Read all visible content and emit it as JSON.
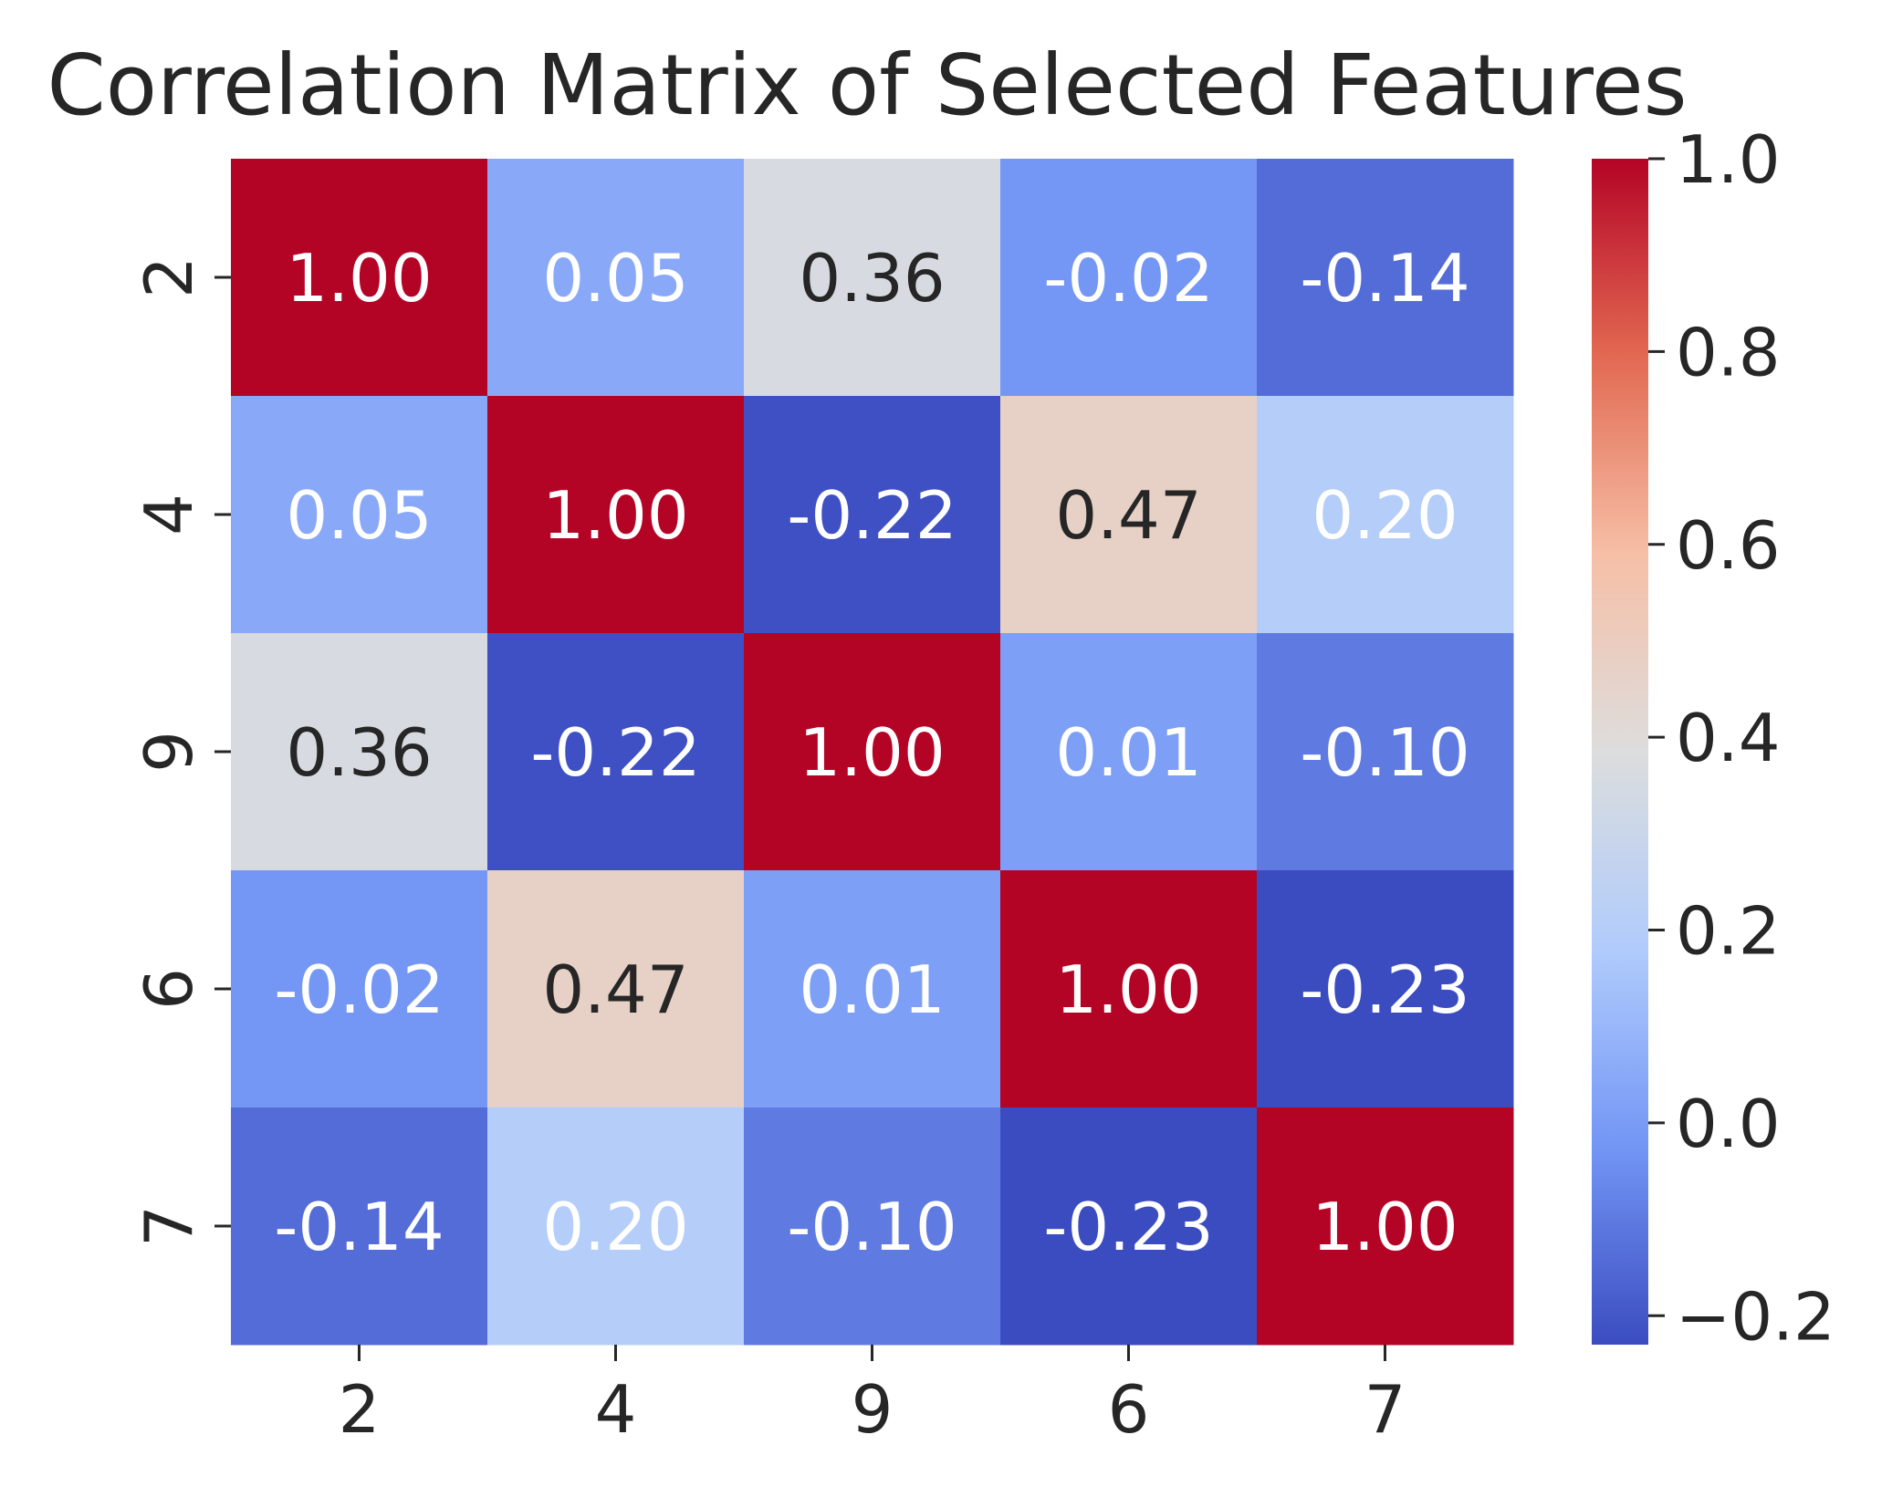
{
  "chart_data": {
    "type": "heatmap",
    "title": "Correlation Matrix of Selected Features",
    "xlabel": "",
    "ylabel": "",
    "x_categories": [
      "2",
      "4",
      "9",
      "6",
      "7"
    ],
    "y_categories": [
      "2",
      "4",
      "9",
      "6",
      "7"
    ],
    "values": [
      [
        1.0,
        0.05,
        0.36,
        -0.02,
        -0.14
      ],
      [
        0.05,
        1.0,
        -0.22,
        0.47,
        0.2
      ],
      [
        0.36,
        -0.22,
        1.0,
        0.01,
        -0.1
      ],
      [
        -0.02,
        0.47,
        0.01,
        1.0,
        -0.23
      ],
      [
        -0.14,
        0.2,
        -0.1,
        -0.23,
        1.0
      ]
    ],
    "annotations": [
      [
        "1.00",
        "0.05",
        "0.36",
        "-0.02",
        "-0.14"
      ],
      [
        "0.05",
        "1.00",
        "-0.22",
        "0.47",
        "0.20"
      ],
      [
        "0.36",
        "-0.22",
        "1.00",
        "0.01",
        "-0.10"
      ],
      [
        "-0.02",
        "0.47",
        "0.01",
        "1.00",
        "-0.23"
      ],
      [
        "-0.14",
        "0.20",
        "-0.10",
        "-0.23",
        "1.00"
      ]
    ],
    "colormap": "coolwarm",
    "vmin": -0.23,
    "vmax": 1.0,
    "colorbar": {
      "ticks": [
        1.0,
        0.8,
        0.6,
        0.4,
        0.2,
        0.0,
        -0.2
      ],
      "tick_labels": [
        "1.0",
        "0.8",
        "0.6",
        "0.4",
        "0.2",
        "0.0",
        "−0.2"
      ]
    },
    "colors": {
      "text_dark": "#262626",
      "text_light": "#ffffff",
      "cmap_stops": [
        "#3b4cc0",
        "#7396f5",
        "#b0cbfc",
        "#dcdddd",
        "#f6bfa6",
        "#e26952",
        "#b40426"
      ]
    }
  }
}
